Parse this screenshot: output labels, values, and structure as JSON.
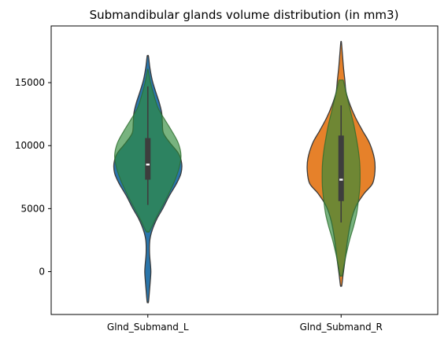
{
  "chart_data": {
    "type": "violin",
    "title": "Submandibular glands volume distribution (in mm3)",
    "xlabel": "",
    "ylabel": "",
    "categories": [
      "Glnd_Submand_L",
      "Glnd_Submand_R"
    ],
    "ylim": [
      -3400,
      19500
    ],
    "yticks": [
      0,
      5000,
      10000,
      15000
    ],
    "ytick_labels": [
      "0",
      "5000",
      "10000",
      "15000"
    ],
    "grid": false,
    "colors": {
      "left": "#2a75aa",
      "right": "#e6812a",
      "overlay": "#2f8a3a",
      "overlay_opacity": 0.65,
      "outline": "#3b3b3b",
      "box": "#3d3d3d",
      "median": "#ffffff"
    },
    "series": [
      {
        "category": "Glnd_Submand_L",
        "color": "#2a75aa",
        "density": [
          [
            -2400,
            0.02
          ],
          [
            -1500,
            0.05
          ],
          [
            -500,
            0.08
          ],
          [
            0,
            0.09
          ],
          [
            500,
            0.08
          ],
          [
            1500,
            0.05
          ],
          [
            2500,
            0.06
          ],
          [
            3300,
            0.13
          ],
          [
            4200,
            0.27
          ],
          [
            5000,
            0.44
          ],
          [
            6000,
            0.63
          ],
          [
            7000,
            0.85
          ],
          [
            7800,
            0.98
          ],
          [
            8600,
            1.0
          ],
          [
            9400,
            0.9
          ],
          [
            10200,
            0.66
          ],
          [
            11000,
            0.46
          ],
          [
            11800,
            0.43
          ],
          [
            12600,
            0.41
          ],
          [
            13400,
            0.34
          ],
          [
            14300,
            0.23
          ],
          [
            15200,
            0.13
          ],
          [
            16200,
            0.06
          ],
          [
            17100,
            0.02
          ]
        ],
        "box": {
          "q1": 7300,
          "median": 8500,
          "q3": 10600,
          "whisker_low": 5300,
          "whisker_high": 14700
        }
      },
      {
        "category": "Glnd_Submand_R",
        "color": "#e6812a",
        "density": [
          [
            -1100,
            0.02
          ],
          [
            -200,
            0.06
          ],
          [
            1000,
            0.12
          ],
          [
            2500,
            0.19
          ],
          [
            4000,
            0.29
          ],
          [
            5200,
            0.44
          ],
          [
            6200,
            0.68
          ],
          [
            7000,
            0.93
          ],
          [
            8000,
            1.0
          ],
          [
            9000,
            0.98
          ],
          [
            10200,
            0.84
          ],
          [
            11200,
            0.63
          ],
          [
            12200,
            0.43
          ],
          [
            13200,
            0.27
          ],
          [
            14200,
            0.15
          ],
          [
            15200,
            0.11
          ],
          [
            16200,
            0.07
          ],
          [
            17200,
            0.04
          ],
          [
            18200,
            0.01
          ]
        ],
        "box": {
          "q1": 5600,
          "median": 7300,
          "q3": 10800,
          "whisker_low": 3900,
          "whisker_high": 13200
        }
      }
    ],
    "overlays": [
      {
        "category": "Glnd_Submand_L",
        "color": "#2f8a3a",
        "density": [
          [
            3200,
            0.05
          ],
          [
            4200,
            0.23
          ],
          [
            5200,
            0.43
          ],
          [
            6200,
            0.62
          ],
          [
            7200,
            0.79
          ],
          [
            8200,
            0.92
          ],
          [
            9200,
            0.98
          ],
          [
            10200,
            0.9
          ],
          [
            11200,
            0.7
          ],
          [
            12200,
            0.47
          ],
          [
            13000,
            0.3
          ],
          [
            14000,
            0.18
          ],
          [
            15000,
            0.08
          ],
          [
            16000,
            0.01
          ]
        ]
      },
      {
        "category": "Glnd_Submand_R",
        "color": "#2f8a3a",
        "density": [
          [
            -300,
            0.03
          ],
          [
            600,
            0.09
          ],
          [
            1600,
            0.17
          ],
          [
            2600,
            0.26
          ],
          [
            3600,
            0.37
          ],
          [
            4600,
            0.46
          ],
          [
            5600,
            0.51
          ],
          [
            6600,
            0.55
          ],
          [
            7600,
            0.56
          ],
          [
            8600,
            0.55
          ],
          [
            9600,
            0.51
          ],
          [
            10600,
            0.45
          ],
          [
            11600,
            0.38
          ],
          [
            12600,
            0.29
          ],
          [
            13600,
            0.2
          ],
          [
            14400,
            0.13
          ],
          [
            15000,
            0.08
          ],
          [
            15200,
            0.06
          ]
        ]
      }
    ]
  }
}
